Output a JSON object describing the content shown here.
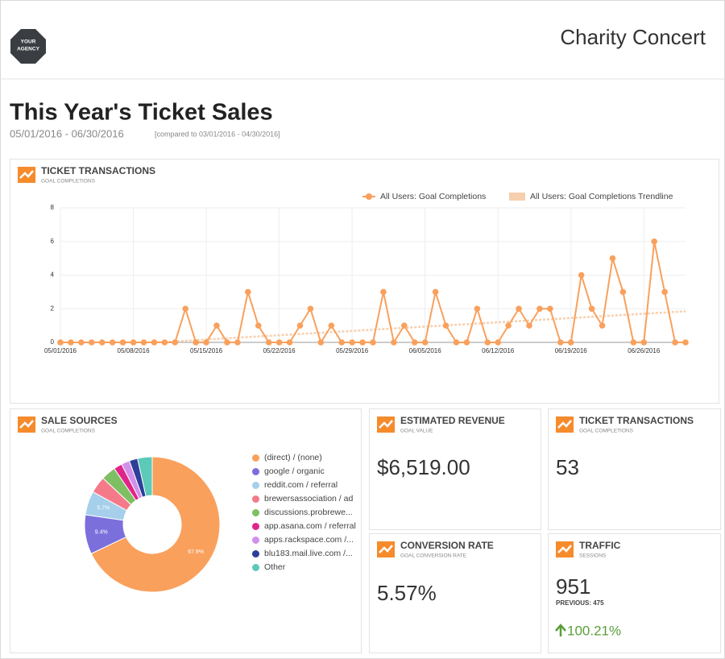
{
  "header": {
    "logo": [
      "YOUR",
      "AGENCY"
    ],
    "title": "Charity Concert"
  },
  "report": {
    "title": "This Year's Ticket Sales",
    "date_range": "05/01/2016 - 06/30/2016",
    "comparison": "[compared to 03/01/2016 - 04/30/2016]"
  },
  "chart_data": [
    {
      "type": "line",
      "title": "TICKET TRANSACTIONS",
      "subtitle": "GOAL COMPLETIONS",
      "categories": [
        "05/01/2016",
        null,
        null,
        null,
        null,
        null,
        null,
        "05/08/2016",
        null,
        null,
        null,
        null,
        null,
        null,
        "05/15/2016",
        null,
        null,
        null,
        null,
        null,
        null,
        "05/22/2016",
        null,
        null,
        null,
        null,
        null,
        null,
        "05/29/2016",
        null,
        null,
        null,
        null,
        null,
        null,
        "06/05/2016",
        null,
        null,
        null,
        null,
        null,
        null,
        "06/12/2016",
        null,
        null,
        null,
        null,
        null,
        null,
        "06/19/2016",
        null,
        null,
        null,
        null,
        null,
        null,
        "06/26/2016",
        null,
        null,
        null,
        null
      ],
      "series": [
        {
          "name": "All Users: Goal Completions",
          "color": "#f9a05c",
          "values": [
            0,
            0,
            0,
            0,
            0,
            0,
            0,
            0,
            0,
            0,
            0,
            0,
            2,
            0,
            0,
            1,
            0,
            0,
            3,
            1,
            0,
            0,
            0,
            1,
            2,
            0,
            1,
            0,
            0,
            0,
            0,
            3,
            0,
            1,
            0,
            0,
            3,
            1,
            0,
            0,
            2,
            0,
            0,
            1,
            2,
            1,
            2,
            2,
            0,
            0,
            4,
            2,
            1,
            5,
            3,
            0,
            0,
            6,
            3,
            0,
            0
          ]
        }
      ],
      "trendline": {
        "name": "All Users: Goal Completions Trendline",
        "color": "#f7cfae",
        "start": -0.34,
        "end": 1.85
      },
      "ylim": [
        0,
        8
      ],
      "yticks": [
        0,
        2,
        4,
        6,
        8
      ],
      "grid": true,
      "legend": "top-right"
    },
    {
      "type": "donut",
      "title": "SALE SOURCES",
      "subtitle": "GOAL COMPLETIONS",
      "categories": [
        "(direct) / (none)",
        "google / organic",
        "reddit.com / referral",
        "brewersassociation / ad",
        "discussions.probrewe...",
        "app.asana.com / referral",
        "apps.rackspace.com /...",
        "blu183.mail.live.com /...",
        "Other"
      ],
      "values": [
        67.9,
        9.4,
        5.7,
        4,
        3.5,
        2,
        2,
        2,
        3.5
      ],
      "value_labels": [
        "67.9%",
        "9.4%",
        "5.7%",
        null,
        null,
        null,
        null,
        null,
        null
      ],
      "colors": [
        "#f9a05c",
        "#7b6fdc",
        "#a5cfea",
        "#f47a8a",
        "#7fbf63",
        "#e0258a",
        "#d290ea",
        "#2e3f99",
        "#5cc9b9"
      ],
      "legend": "right"
    }
  ],
  "kpis": [
    {
      "title": "ESTIMATED REVENUE",
      "subtitle": "GOAL VALUE",
      "value": "$6,519.00"
    },
    {
      "title": "TICKET TRANSACTIONS",
      "subtitle": "GOAL COMPLETIONS",
      "value": "53"
    },
    {
      "title": "CONVERSION RATE",
      "subtitle": "GOAL CONVERSION RATE",
      "value": "5.57%"
    },
    {
      "title": "TRAFFIC",
      "subtitle": "SESSIONS",
      "value": "951",
      "previous": "PREVIOUS: 475",
      "change": "100.21%"
    }
  ]
}
